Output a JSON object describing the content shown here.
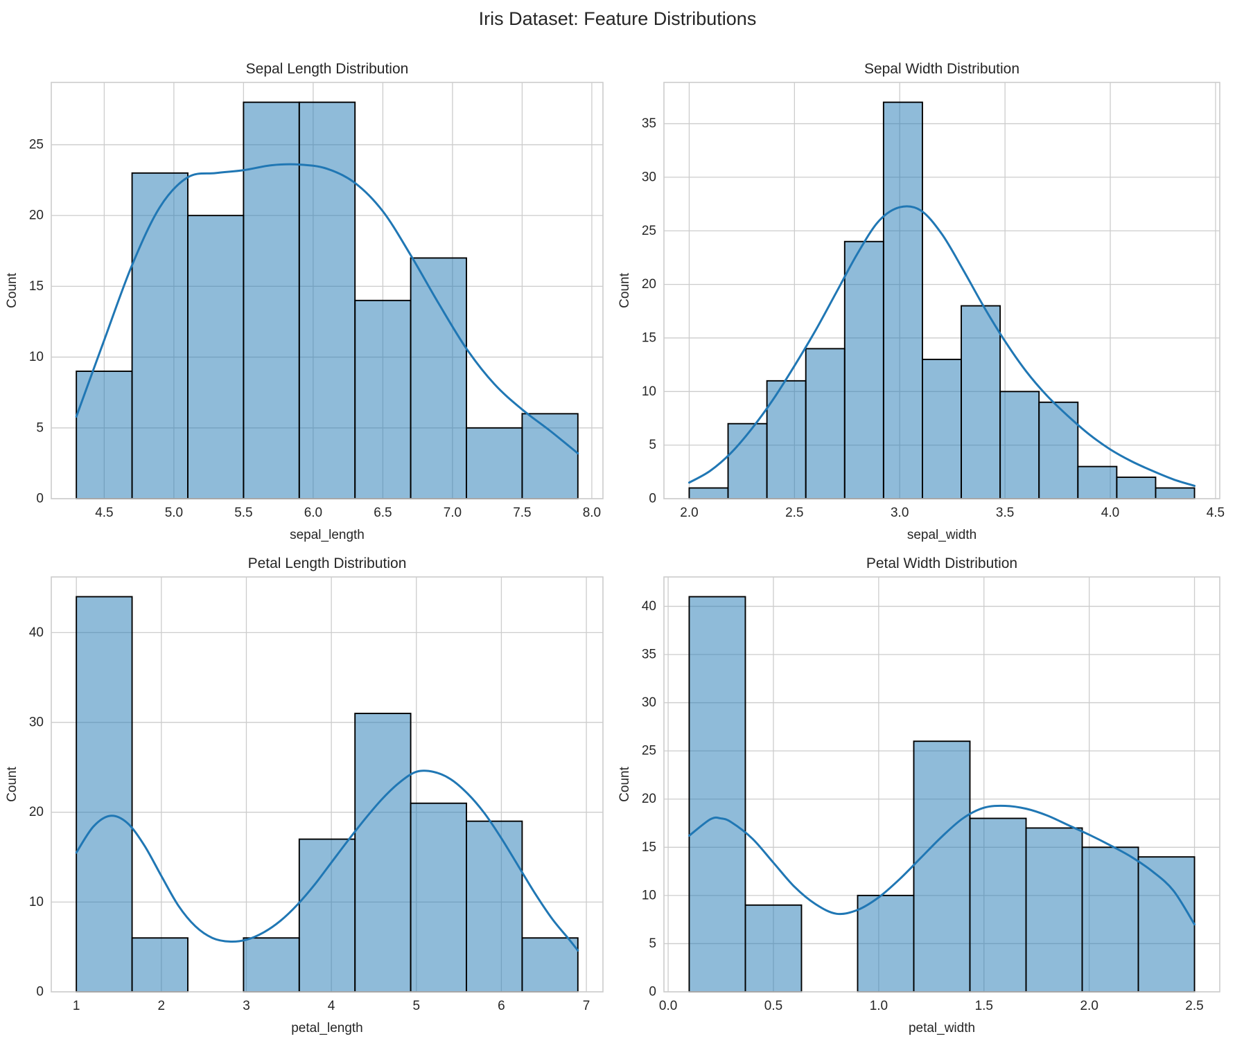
{
  "figure": {
    "suptitle": "Iris Dataset: Feature Distributions",
    "background": "#ffffff",
    "text_color": "#262626",
    "grid_color": "#cccccc",
    "bar_fill_rgba": "rgba(31,119,180,0.5)",
    "bar_edge": "#000000",
    "kde_color": "#2077b4"
  },
  "chart_data": [
    {
      "type": "bar",
      "subtype": "histogram_with_kde",
      "title": "Sepal Length Distribution",
      "xlabel": "sepal_length",
      "ylabel": "Count",
      "bin_start": 4.3,
      "bin_width": 0.4,
      "counts": [
        9,
        23,
        20,
        28,
        28,
        14,
        17,
        5,
        6
      ],
      "xlim": [
        4.12,
        8.08
      ],
      "ylim": [
        0,
        29.4
      ],
      "xtick_values": [
        4.5,
        5.0,
        5.5,
        6.0,
        6.5,
        7.0,
        7.5,
        8.0
      ],
      "xtick_labels": [
        "4.5",
        "5.0",
        "5.5",
        "6.0",
        "6.5",
        "7.0",
        "7.5",
        "8.0"
      ],
      "ytick_values": [
        0,
        5,
        10,
        15,
        20,
        25
      ],
      "ytick_labels": [
        "0",
        "5",
        "10",
        "15",
        "20",
        "25"
      ],
      "grid": true,
      "kde": [
        [
          4.3,
          5.8
        ],
        [
          4.5,
          11.2
        ],
        [
          4.7,
          16.5
        ],
        [
          4.9,
          20.6
        ],
        [
          5.1,
          22.7
        ],
        [
          5.3,
          23.0
        ],
        [
          5.5,
          23.2
        ],
        [
          5.7,
          23.55
        ],
        [
          5.9,
          23.6
        ],
        [
          6.1,
          23.3
        ],
        [
          6.3,
          22.3
        ],
        [
          6.5,
          20.3
        ],
        [
          6.7,
          17.2
        ],
        [
          6.9,
          13.8
        ],
        [
          7.1,
          10.6
        ],
        [
          7.3,
          8.1
        ],
        [
          7.5,
          6.3
        ],
        [
          7.7,
          4.8
        ],
        [
          7.9,
          3.2
        ]
      ]
    },
    {
      "type": "bar",
      "subtype": "histogram_with_kde",
      "title": "Sepal Width Distribution",
      "xlabel": "sepal_width",
      "ylabel": "Count",
      "bin_start": 2.0,
      "bin_width": 0.184615,
      "counts": [
        1,
        7,
        11,
        14,
        24,
        37,
        13,
        18,
        10,
        9,
        3,
        2,
        1
      ],
      "xlim": [
        1.88,
        4.52
      ],
      "ylim": [
        0,
        38.85
      ],
      "xtick_values": [
        2.0,
        2.5,
        3.0,
        3.5,
        4.0,
        4.5
      ],
      "xtick_labels": [
        "2.0",
        "2.5",
        "3.0",
        "3.5",
        "4.0",
        "4.5"
      ],
      "ytick_values": [
        0,
        5,
        10,
        15,
        20,
        25,
        30,
        35
      ],
      "ytick_labels": [
        "0",
        "5",
        "10",
        "15",
        "20",
        "25",
        "30",
        "35"
      ],
      "grid": true,
      "kde": [
        [
          2.0,
          1.5
        ],
        [
          2.1,
          2.6
        ],
        [
          2.2,
          4.3
        ],
        [
          2.3,
          6.6
        ],
        [
          2.4,
          9.3
        ],
        [
          2.5,
          12.4
        ],
        [
          2.6,
          15.7
        ],
        [
          2.7,
          19.3
        ],
        [
          2.8,
          22.9
        ],
        [
          2.9,
          25.9
        ],
        [
          3.0,
          27.2
        ],
        [
          3.1,
          26.9
        ],
        [
          3.2,
          24.7
        ],
        [
          3.3,
          21.4
        ],
        [
          3.4,
          17.9
        ],
        [
          3.5,
          14.7
        ],
        [
          3.6,
          11.9
        ],
        [
          3.7,
          9.6
        ],
        [
          3.8,
          7.7
        ],
        [
          3.9,
          6.0
        ],
        [
          4.0,
          4.6
        ],
        [
          4.1,
          3.5
        ],
        [
          4.2,
          2.6
        ],
        [
          4.3,
          1.8
        ],
        [
          4.4,
          1.2
        ]
      ]
    },
    {
      "type": "bar",
      "subtype": "histogram_with_kde",
      "title": "Petal Length Distribution",
      "xlabel": "petal_length",
      "ylabel": "Count",
      "bin_start": 1.0,
      "bin_width": 0.655556,
      "counts": [
        44,
        6,
        0,
        6,
        17,
        31,
        21,
        19,
        6
      ],
      "xlim": [
        0.705,
        7.195
      ],
      "ylim": [
        0,
        46.2
      ],
      "xtick_values": [
        1,
        2,
        3,
        4,
        5,
        6,
        7
      ],
      "xtick_labels": [
        "1",
        "2",
        "3",
        "4",
        "5",
        "6",
        "7"
      ],
      "ytick_values": [
        0,
        10,
        20,
        30,
        40
      ],
      "ytick_labels": [
        "0",
        "10",
        "20",
        "30",
        "40"
      ],
      "grid": true,
      "kde": [
        [
          1.0,
          15.5
        ],
        [
          1.2,
          18.4
        ],
        [
          1.4,
          19.6
        ],
        [
          1.6,
          18.8
        ],
        [
          1.8,
          16.3
        ],
        [
          2.0,
          12.9
        ],
        [
          2.2,
          9.6
        ],
        [
          2.4,
          7.3
        ],
        [
          2.6,
          6.0
        ],
        [
          2.8,
          5.6
        ],
        [
          3.0,
          5.8
        ],
        [
          3.2,
          6.6
        ],
        [
          3.4,
          7.9
        ],
        [
          3.6,
          9.7
        ],
        [
          3.8,
          11.9
        ],
        [
          4.0,
          14.4
        ],
        [
          4.2,
          16.9
        ],
        [
          4.4,
          19.3
        ],
        [
          4.6,
          21.5
        ],
        [
          4.8,
          23.3
        ],
        [
          5.0,
          24.5
        ],
        [
          5.2,
          24.5
        ],
        [
          5.4,
          23.7
        ],
        [
          5.6,
          22.1
        ],
        [
          5.8,
          19.9
        ],
        [
          6.0,
          17.1
        ],
        [
          6.2,
          14.0
        ],
        [
          6.4,
          10.9
        ],
        [
          6.6,
          8.1
        ],
        [
          6.8,
          5.8
        ],
        [
          6.9,
          4.6
        ]
      ]
    },
    {
      "type": "bar",
      "subtype": "histogram_with_kde",
      "title": "Petal Width Distribution",
      "xlabel": "petal_width",
      "ylabel": "Count",
      "bin_start": 0.1,
      "bin_width": 0.266667,
      "counts": [
        41,
        9,
        0,
        10,
        26,
        18,
        17,
        15,
        14
      ],
      "xlim": [
        -0.02,
        2.62
      ],
      "ylim": [
        0,
        43.05
      ],
      "xtick_values": [
        0.0,
        0.5,
        1.0,
        1.5,
        2.0,
        2.5
      ],
      "xtick_labels": [
        "0.0",
        "0.5",
        "1.0",
        "1.5",
        "2.0",
        "2.5"
      ],
      "ytick_values": [
        0,
        5,
        10,
        15,
        20,
        25,
        30,
        35,
        40
      ],
      "ytick_labels": [
        "0",
        "5",
        "10",
        "15",
        "20",
        "25",
        "30",
        "35",
        "40"
      ],
      "grid": true,
      "kde": [
        [
          0.1,
          16.2
        ],
        [
          0.2,
          17.9
        ],
        [
          0.25,
          18.0
        ],
        [
          0.3,
          17.6
        ],
        [
          0.4,
          15.9
        ],
        [
          0.5,
          13.4
        ],
        [
          0.6,
          10.9
        ],
        [
          0.7,
          9.1
        ],
        [
          0.8,
          8.1
        ],
        [
          0.9,
          8.5
        ],
        [
          1.0,
          9.8
        ],
        [
          1.1,
          11.7
        ],
        [
          1.2,
          13.9
        ],
        [
          1.3,
          16.1
        ],
        [
          1.4,
          18.0
        ],
        [
          1.5,
          19.1
        ],
        [
          1.6,
          19.3
        ],
        [
          1.7,
          19.0
        ],
        [
          1.8,
          18.3
        ],
        [
          1.9,
          17.3
        ],
        [
          2.0,
          16.3
        ],
        [
          2.1,
          15.2
        ],
        [
          2.2,
          14.0
        ],
        [
          2.3,
          12.5
        ],
        [
          2.4,
          10.5
        ],
        [
          2.5,
          7.0
        ]
      ]
    }
  ]
}
